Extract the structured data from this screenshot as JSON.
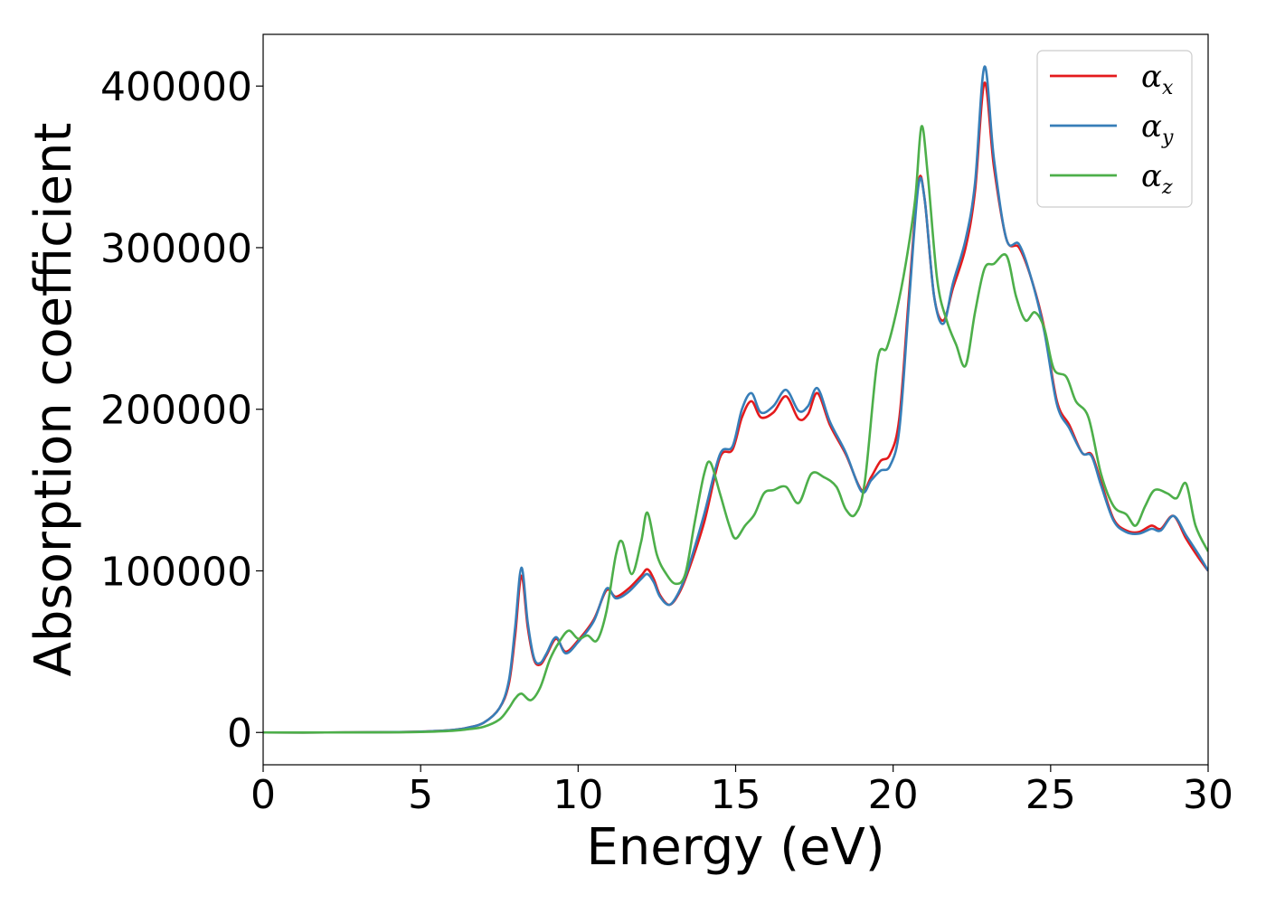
{
  "chart_data": {
    "type": "line",
    "xlabel": "Energy (eV)",
    "ylabel": "Absorption coefficient",
    "xlim": [
      0,
      30
    ],
    "ylim": [
      -20000,
      432000
    ],
    "xticks": [
      0,
      5,
      10,
      15,
      20,
      25,
      30
    ],
    "xtick_labels": [
      "0",
      "5",
      "10",
      "15",
      "20",
      "25",
      "30"
    ],
    "yticks": [
      0,
      100000,
      200000,
      300000,
      400000
    ],
    "ytick_labels": [
      "0",
      "100000",
      "200000",
      "300000",
      "400000"
    ],
    "grid": false,
    "legend_position": "top-right",
    "series": [
      {
        "name": "α",
        "subscript": "x",
        "color": "#e41a1c",
        "points": [
          [
            0,
            0
          ],
          [
            2,
            0
          ],
          [
            4,
            200
          ],
          [
            5,
            500
          ],
          [
            6,
            1500
          ],
          [
            6.5,
            3000
          ],
          [
            7,
            6000
          ],
          [
            7.5,
            15000
          ],
          [
            7.8,
            30000
          ],
          [
            8.0,
            60000
          ],
          [
            8.2,
            97000
          ],
          [
            8.4,
            65000
          ],
          [
            8.6,
            45000
          ],
          [
            8.8,
            42000
          ],
          [
            9.0,
            48000
          ],
          [
            9.3,
            58000
          ],
          [
            9.6,
            50000
          ],
          [
            10.0,
            57000
          ],
          [
            10.5,
            70000
          ],
          [
            10.9,
            88000
          ],
          [
            11.2,
            84000
          ],
          [
            11.6,
            89000
          ],
          [
            12.0,
            97000
          ],
          [
            12.2,
            101000
          ],
          [
            12.4,
            95000
          ],
          [
            12.6,
            85000
          ],
          [
            12.9,
            79000
          ],
          [
            13.2,
            86000
          ],
          [
            13.5,
            100000
          ],
          [
            14.0,
            130000
          ],
          [
            14.5,
            170000
          ],
          [
            14.9,
            175000
          ],
          [
            15.2,
            195000
          ],
          [
            15.5,
            205000
          ],
          [
            15.8,
            195000
          ],
          [
            16.2,
            198000
          ],
          [
            16.6,
            208000
          ],
          [
            17.0,
            194000
          ],
          [
            17.3,
            197000
          ],
          [
            17.6,
            210000
          ],
          [
            18.0,
            190000
          ],
          [
            18.5,
            172000
          ],
          [
            19.0,
            150000
          ],
          [
            19.3,
            158000
          ],
          [
            19.6,
            168000
          ],
          [
            19.9,
            172000
          ],
          [
            20.2,
            195000
          ],
          [
            20.5,
            270000
          ],
          [
            20.8,
            340000
          ],
          [
            21.0,
            330000
          ],
          [
            21.3,
            270000
          ],
          [
            21.6,
            255000
          ],
          [
            21.9,
            275000
          ],
          [
            22.3,
            300000
          ],
          [
            22.6,
            335000
          ],
          [
            22.9,
            402000
          ],
          [
            23.2,
            350000
          ],
          [
            23.6,
            305000
          ],
          [
            24.0,
            300000
          ],
          [
            24.4,
            280000
          ],
          [
            24.8,
            250000
          ],
          [
            25.2,
            205000
          ],
          [
            25.6,
            190000
          ],
          [
            26.0,
            173000
          ],
          [
            26.3,
            172000
          ],
          [
            26.6,
            155000
          ],
          [
            27.0,
            132000
          ],
          [
            27.4,
            125000
          ],
          [
            27.8,
            124000
          ],
          [
            28.2,
            128000
          ],
          [
            28.5,
            126000
          ],
          [
            28.9,
            134000
          ],
          [
            29.3,
            120000
          ],
          [
            29.7,
            108000
          ],
          [
            30.0,
            100000
          ]
        ]
      },
      {
        "name": "α",
        "subscript": "y",
        "color": "#377eb8",
        "points": [
          [
            0,
            0
          ],
          [
            2,
            0
          ],
          [
            4,
            200
          ],
          [
            5,
            500
          ],
          [
            6,
            1500
          ],
          [
            6.5,
            3000
          ],
          [
            7,
            6000
          ],
          [
            7.5,
            15000
          ],
          [
            7.8,
            32000
          ],
          [
            8.0,
            65000
          ],
          [
            8.2,
            102000
          ],
          [
            8.4,
            68000
          ],
          [
            8.6,
            46000
          ],
          [
            8.8,
            43000
          ],
          [
            9.0,
            49000
          ],
          [
            9.3,
            59000
          ],
          [
            9.6,
            49000
          ],
          [
            10.0,
            56000
          ],
          [
            10.5,
            69000
          ],
          [
            10.9,
            89000
          ],
          [
            11.2,
            83000
          ],
          [
            11.6,
            87000
          ],
          [
            12.0,
            95000
          ],
          [
            12.2,
            98000
          ],
          [
            12.4,
            93000
          ],
          [
            12.6,
            84000
          ],
          [
            12.9,
            79000
          ],
          [
            13.2,
            87000
          ],
          [
            13.5,
            102000
          ],
          [
            14.0,
            135000
          ],
          [
            14.5,
            172000
          ],
          [
            14.9,
            177000
          ],
          [
            15.2,
            200000
          ],
          [
            15.5,
            210000
          ],
          [
            15.8,
            198000
          ],
          [
            16.2,
            202000
          ],
          [
            16.6,
            212000
          ],
          [
            17.0,
            199000
          ],
          [
            17.3,
            202000
          ],
          [
            17.6,
            213000
          ],
          [
            18.0,
            192000
          ],
          [
            18.5,
            173000
          ],
          [
            19.0,
            149000
          ],
          [
            19.3,
            156000
          ],
          [
            19.6,
            162000
          ],
          [
            19.9,
            165000
          ],
          [
            20.2,
            188000
          ],
          [
            20.5,
            265000
          ],
          [
            20.8,
            338000
          ],
          [
            21.0,
            330000
          ],
          [
            21.3,
            270000
          ],
          [
            21.6,
            253000
          ],
          [
            21.9,
            278000
          ],
          [
            22.3,
            305000
          ],
          [
            22.6,
            340000
          ],
          [
            22.9,
            412000
          ],
          [
            23.2,
            355000
          ],
          [
            23.6,
            305000
          ],
          [
            24.0,
            302000
          ],
          [
            24.4,
            280000
          ],
          [
            24.8,
            248000
          ],
          [
            25.2,
            203000
          ],
          [
            25.6,
            188000
          ],
          [
            26.0,
            173000
          ],
          [
            26.3,
            171000
          ],
          [
            26.6,
            153000
          ],
          [
            27.0,
            131000
          ],
          [
            27.4,
            124000
          ],
          [
            27.8,
            123000
          ],
          [
            28.2,
            126000
          ],
          [
            28.5,
            125000
          ],
          [
            28.9,
            134000
          ],
          [
            29.3,
            122000
          ],
          [
            29.7,
            110000
          ],
          [
            30.0,
            100000
          ]
        ]
      },
      {
        "name": "α",
        "subscript": "z",
        "color": "#4daf4a",
        "points": [
          [
            0,
            0
          ],
          [
            2,
            0
          ],
          [
            4,
            100
          ],
          [
            5,
            300
          ],
          [
            6,
            1000
          ],
          [
            6.5,
            2000
          ],
          [
            7,
            3500
          ],
          [
            7.5,
            8000
          ],
          [
            7.8,
            15000
          ],
          [
            8.0,
            21000
          ],
          [
            8.2,
            24000
          ],
          [
            8.5,
            20000
          ],
          [
            8.8,
            28000
          ],
          [
            9.1,
            45000
          ],
          [
            9.4,
            56000
          ],
          [
            9.7,
            63000
          ],
          [
            10.0,
            58000
          ],
          [
            10.3,
            60000
          ],
          [
            10.6,
            57000
          ],
          [
            10.9,
            75000
          ],
          [
            11.2,
            110000
          ],
          [
            11.4,
            118000
          ],
          [
            11.7,
            98000
          ],
          [
            12.0,
            118000
          ],
          [
            12.2,
            136000
          ],
          [
            12.5,
            110000
          ],
          [
            12.8,
            98000
          ],
          [
            13.1,
            92000
          ],
          [
            13.4,
            98000
          ],
          [
            13.7,
            130000
          ],
          [
            14.0,
            160000
          ],
          [
            14.2,
            167000
          ],
          [
            14.5,
            148000
          ],
          [
            14.8,
            128000
          ],
          [
            15.0,
            120000
          ],
          [
            15.3,
            128000
          ],
          [
            15.6,
            135000
          ],
          [
            15.9,
            148000
          ],
          [
            16.2,
            150000
          ],
          [
            16.6,
            152000
          ],
          [
            17.0,
            142000
          ],
          [
            17.4,
            160000
          ],
          [
            17.8,
            158000
          ],
          [
            18.2,
            152000
          ],
          [
            18.5,
            138000
          ],
          [
            18.8,
            135000
          ],
          [
            19.1,
            155000
          ],
          [
            19.5,
            230000
          ],
          [
            19.8,
            238000
          ],
          [
            20.1,
            260000
          ],
          [
            20.4,
            290000
          ],
          [
            20.7,
            330000
          ],
          [
            20.9,
            375000
          ],
          [
            21.1,
            345000
          ],
          [
            21.4,
            280000
          ],
          [
            21.7,
            255000
          ],
          [
            22.0,
            240000
          ],
          [
            22.3,
            227000
          ],
          [
            22.6,
            260000
          ],
          [
            22.9,
            287000
          ],
          [
            23.2,
            290000
          ],
          [
            23.6,
            295000
          ],
          [
            23.9,
            270000
          ],
          [
            24.2,
            255000
          ],
          [
            24.5,
            260000
          ],
          [
            24.8,
            250000
          ],
          [
            25.1,
            225000
          ],
          [
            25.5,
            220000
          ],
          [
            25.8,
            205000
          ],
          [
            26.2,
            195000
          ],
          [
            26.6,
            160000
          ],
          [
            27.0,
            140000
          ],
          [
            27.4,
            135000
          ],
          [
            27.7,
            128000
          ],
          [
            28.0,
            140000
          ],
          [
            28.3,
            150000
          ],
          [
            28.7,
            148000
          ],
          [
            29.0,
            145000
          ],
          [
            29.3,
            154000
          ],
          [
            29.6,
            128000
          ],
          [
            30.0,
            112000
          ]
        ]
      }
    ]
  }
}
